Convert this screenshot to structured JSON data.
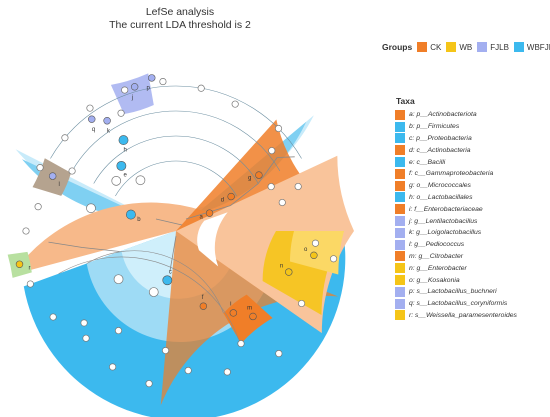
{
  "header": {
    "title": "LefSe analysis",
    "subtitle": "The current LDA threshold is 2"
  },
  "groups": {
    "label": "Groups",
    "items": [
      {
        "name": "CK",
        "color": "#f07e28"
      },
      {
        "name": "WB",
        "color": "#f5c518"
      },
      {
        "name": "FJLB",
        "color": "#a3aff0"
      },
      {
        "name": "WBFJLB",
        "color": "#3cb9ee"
      }
    ]
  },
  "taxa": {
    "label": "Taxa",
    "items": [
      {
        "letter": "a",
        "name": "a: p__Actinobacteriota",
        "group": "CK",
        "color": "#f07e28"
      },
      {
        "letter": "b",
        "name": "b: p__Firmicutes",
        "group": "WBFJLB",
        "color": "#3cb9ee"
      },
      {
        "letter": "c",
        "name": "c: p__Proteobacteria",
        "group": "WBFJLB",
        "color": "#3cb9ee"
      },
      {
        "letter": "d",
        "name": "d: c__Actinobacteria",
        "group": "CK",
        "color": "#f07e28"
      },
      {
        "letter": "e",
        "name": "e: c__Bacilli",
        "group": "WBFJLB",
        "color": "#3cb9ee"
      },
      {
        "letter": "f",
        "name": "f: c__Gammaproteobacteria",
        "group": "CK",
        "color": "#f07e28"
      },
      {
        "letter": "g",
        "name": "g: o__Micrococcales",
        "group": "CK",
        "color": "#f07e28"
      },
      {
        "letter": "h",
        "name": "h: o__Lactobacillales",
        "group": "WBFJLB",
        "color": "#3cb9ee"
      },
      {
        "letter": "i",
        "name": "i: f__Enterobacteriaceae",
        "group": "CK",
        "color": "#f07e28"
      },
      {
        "letter": "j",
        "name": "j: g__Lentilactobacillus",
        "group": "FJLB",
        "color": "#a3aff0"
      },
      {
        "letter": "k",
        "name": "k: g__Loigolactobacillus",
        "group": "FJLB",
        "color": "#a3aff0"
      },
      {
        "letter": "l",
        "name": "l: g__Pediococcus",
        "group": "FJLB",
        "color": "#a3aff0"
      },
      {
        "letter": "m",
        "name": "m: g__Citrobacter",
        "group": "CK",
        "color": "#f07e28"
      },
      {
        "letter": "n",
        "name": "n: g__Enterobacter",
        "group": "WB",
        "color": "#f5c518"
      },
      {
        "letter": "o",
        "name": "o: g__Kosakonia",
        "group": "WB",
        "color": "#f5c518"
      },
      {
        "letter": "p",
        "name": "p: s__Lactobacillus_buchneri",
        "group": "FJLB",
        "color": "#a3aff0"
      },
      {
        "letter": "q",
        "name": "q: s__Lactobacillus_coryniformis",
        "group": "FJLB",
        "color": "#a3aff0"
      },
      {
        "letter": "r",
        "name": "r: s__Weissella_paramesenteroides",
        "group": "WB",
        "color": "#f5c518"
      }
    ]
  }
}
